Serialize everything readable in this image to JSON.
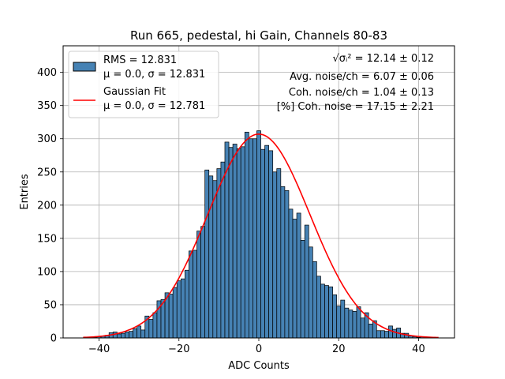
{
  "chart_data": {
    "type": "bar",
    "title": "Run 665, pedestal, hi Gain, Channels 80-83",
    "xlabel": "ADC Counts",
    "ylabel": "Entries",
    "xlim": [
      -49,
      49
    ],
    "ylim": [
      0,
      440
    ],
    "xticks": [
      -40,
      -20,
      0,
      20,
      40
    ],
    "yticks": [
      0,
      50,
      100,
      150,
      200,
      250,
      300,
      350,
      400
    ],
    "grid": true,
    "legend_position": "top-left",
    "bin_width": 1,
    "bins_x": [
      -43,
      -42,
      -41,
      -40,
      -39,
      -38,
      -37,
      -36,
      -35,
      -34,
      -33,
      -32,
      -31,
      -30,
      -29,
      -28,
      -27,
      -26,
      -25,
      -24,
      -23,
      -22,
      -21,
      -20,
      -19,
      -18,
      -17,
      -16,
      -15,
      -14,
      -13,
      -12,
      -11,
      -10,
      -9,
      -8,
      -7,
      -6,
      -5,
      -4,
      -3,
      -2,
      -1,
      0,
      1,
      2,
      3,
      4,
      5,
      6,
      7,
      8,
      9,
      10,
      11,
      12,
      13,
      14,
      15,
      16,
      17,
      18,
      19,
      20,
      21,
      22,
      23,
      24,
      25,
      26,
      27,
      28,
      29,
      30,
      31,
      32,
      33,
      34,
      35,
      36,
      37,
      38,
      39,
      40,
      41,
      42,
      43,
      44
    ],
    "counts": [
      0,
      1,
      1,
      2,
      3,
      4,
      8,
      9,
      6,
      7,
      9,
      10,
      14,
      18,
      12,
      33,
      28,
      38,
      56,
      58,
      68,
      66,
      76,
      86,
      89,
      102,
      131,
      132,
      161,
      168,
      253,
      244,
      237,
      255,
      265,
      295,
      287,
      292,
      285,
      288,
      310,
      300,
      300,
      312,
      284,
      290,
      282,
      250,
      255,
      228,
      222,
      194,
      179,
      188,
      147,
      170,
      137,
      115,
      93,
      81,
      79,
      77,
      65,
      48,
      57,
      45,
      42,
      40,
      47,
      30,
      38,
      21,
      26,
      11,
      11,
      10,
      18,
      13,
      15,
      7,
      7,
      3,
      2,
      1,
      2,
      1,
      0,
      0
    ],
    "series": [
      {
        "name": "RMS = 12.831",
        "name_line2": "μ = 0.0, σ = 12.831",
        "color": "#4682b4",
        "edge_color": "#000000"
      },
      {
        "name": "Gaussian Fit",
        "name_line2": "μ = 0.0, σ = 12.781",
        "color": "#ff0000",
        "mu": 0.0,
        "sigma": 12.781,
        "amplitude": 307,
        "x_range": [
          -44,
          45
        ]
      }
    ],
    "annotations": [
      "√σᵢ² = 12.14 ± 0.12",
      "Avg. noise/ch = 6.07 ± 0.06",
      "Coh. noise/ch = 1.04 ± 0.13",
      "[%] Coh. noise = 17.15 ± 2.21"
    ]
  }
}
